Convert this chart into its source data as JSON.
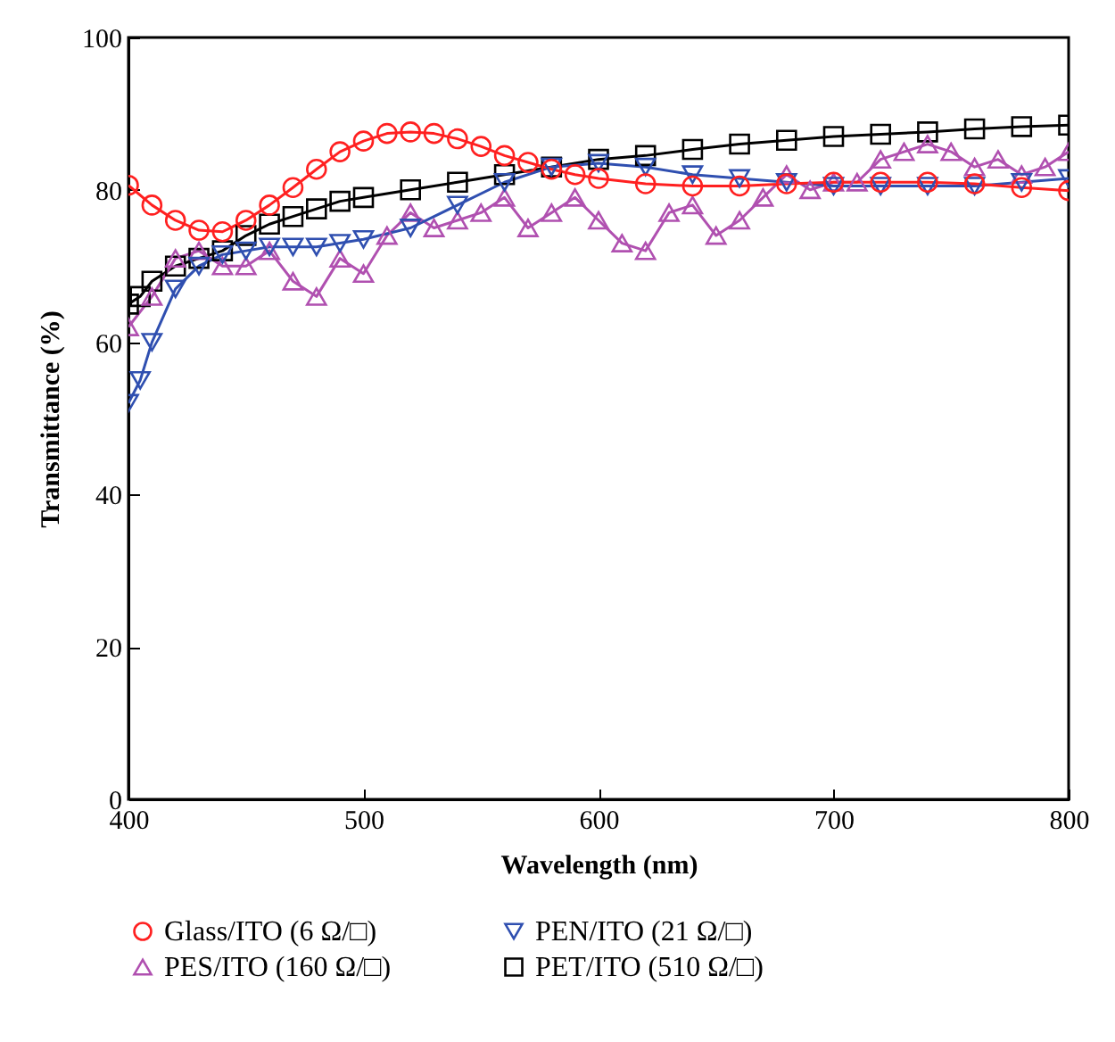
{
  "chart_data": {
    "type": "line",
    "xlabel": "Wavelength (nm)",
    "ylabel": "Transmittance (%)",
    "xlim": [
      400,
      800
    ],
    "xticks": [
      400,
      500,
      600,
      700,
      800
    ],
    "ylim": [
      0,
      100
    ],
    "yticks": [
      0,
      20,
      40,
      60,
      80,
      100
    ],
    "legend": "bottom",
    "series": [
      {
        "name": "Glass/ITO (6 Ω/□)",
        "color": "#ff2020",
        "marker": "circle",
        "x": [
          400,
          410,
          420,
          430,
          440,
          450,
          460,
          470,
          480,
          490,
          500,
          510,
          520,
          530,
          540,
          550,
          560,
          570,
          580,
          590,
          600,
          620,
          640,
          660,
          680,
          700,
          720,
          740,
          760,
          780,
          800
        ],
        "values": [
          80.6,
          78,
          76,
          74.7,
          74.5,
          76,
          78,
          80.3,
          82.7,
          85,
          86.4,
          87.4,
          87.6,
          87.4,
          86.7,
          85.7,
          84.5,
          83.6,
          82.7,
          82,
          81.5,
          80.8,
          80.5,
          80.5,
          80.8,
          81,
          81,
          81,
          80.8,
          80.3,
          79.9
        ]
      },
      {
        "name": "PEN/ITO (21 Ω/□)",
        "color": "#2f4fb0",
        "marker": "triangle-down",
        "x": [
          400,
          405,
          410,
          420,
          430,
          440,
          450,
          460,
          470,
          480,
          490,
          500,
          520,
          540,
          560,
          580,
          600,
          620,
          640,
          660,
          680,
          700,
          720,
          740,
          760,
          780,
          800
        ],
        "values": [
          52,
          55,
          60,
          67,
          70,
          71.5,
          72,
          72.5,
          72.5,
          72.5,
          73,
          73.5,
          75,
          78,
          81,
          83,
          83.5,
          83,
          82,
          81.5,
          81,
          80.5,
          80.5,
          80.5,
          80.5,
          81,
          81.5
        ]
      },
      {
        "name": "PES/ITO (160 Ω/□)",
        "color": "#b050b0",
        "marker": "triangle",
        "x": [
          400,
          410,
          420,
          430,
          440,
          450,
          460,
          470,
          480,
          490,
          500,
          510,
          520,
          530,
          540,
          550,
          560,
          570,
          580,
          590,
          600,
          610,
          620,
          630,
          640,
          650,
          660,
          670,
          680,
          690,
          700,
          710,
          720,
          730,
          740,
          750,
          760,
          770,
          780,
          790,
          800
        ],
        "values": [
          62,
          66,
          71,
          72,
          70,
          70,
          72,
          68,
          66,
          71,
          69,
          74,
          77,
          75,
          76,
          77,
          79,
          75,
          77,
          79,
          76,
          73,
          72,
          77,
          78,
          74,
          76,
          79,
          82,
          80,
          81,
          81,
          84,
          85,
          86,
          85,
          83,
          84,
          82,
          83,
          85
        ]
      },
      {
        "name": "PET/ITO (510 Ω/□)",
        "color": "#000000",
        "marker": "square",
        "x": [
          400,
          405,
          410,
          420,
          430,
          440,
          450,
          460,
          470,
          480,
          490,
          500,
          520,
          540,
          560,
          580,
          600,
          620,
          640,
          660,
          680,
          700,
          720,
          740,
          760,
          780,
          800
        ],
        "values": [
          65,
          66,
          68,
          70,
          71,
          72,
          74,
          75.5,
          76.5,
          77.5,
          78.5,
          79,
          80,
          81,
          82,
          83,
          84,
          84.5,
          85.3,
          86,
          86.5,
          87,
          87.3,
          87.6,
          88,
          88.3,
          88.5
        ]
      }
    ]
  }
}
